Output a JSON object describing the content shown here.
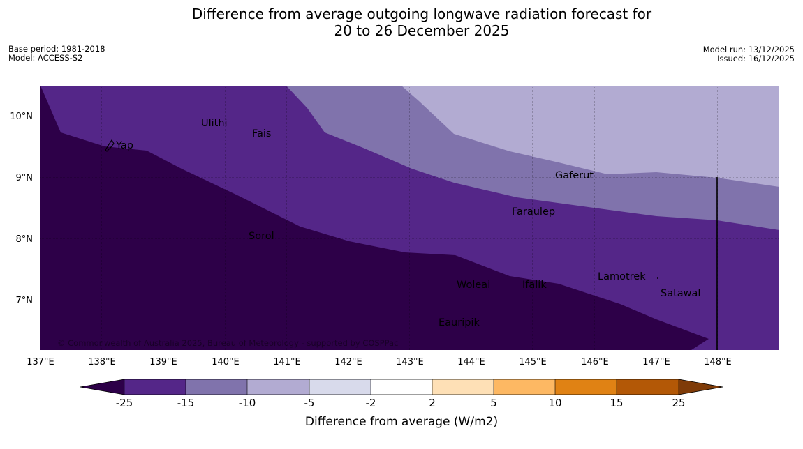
{
  "title": {
    "line1": "Difference from average outgoing longwave radiation forecast for",
    "line2": "20 to 26 December 2025"
  },
  "meta": {
    "base_period": "Base period: 1981-2018",
    "model": "Model: ACCESS-S2",
    "model_run": "Model run: 13/12/2025",
    "issued": "Issued: 16/12/2025"
  },
  "map": {
    "lon_labels": [
      "137°E",
      "138°E",
      "139°E",
      "140°E",
      "141°E",
      "142°E",
      "143°E",
      "144°E",
      "145°E",
      "146°E",
      "147°E",
      "148°E"
    ],
    "lat_labels": [
      "10°N",
      "9°N",
      "8°N",
      "7°N"
    ],
    "places": [
      "Yap",
      "Ulithi",
      "Fais",
      "Gaferut",
      "Faraulep",
      "Sorol",
      "Lamotrek",
      "Woleai",
      "Ifalik",
      "Satawal",
      "Eauripik"
    ],
    "copyright": "© Commonwealth of Australia 2025, Bureau of Meteorology - supported by COSPPac"
  },
  "colorbar": {
    "title": "Difference from average (W/m2)",
    "tick_labels": [
      "-25",
      "-15",
      "-10",
      "-5",
      "-2",
      "2",
      "5",
      "10",
      "15",
      "25"
    ],
    "colors": {
      "below_-25": "#2d0048",
      "-25_-15": "#542688",
      "-15_-10": "#8073ac",
      "-10_-5": "#b2abd2",
      "-5_-2": "#d8daeb",
      "-2_2": "#ffffff",
      "2_5": "#fee0b6",
      "5_10": "#fdb863",
      "10_15": "#e08214",
      "15_25": "#b35806",
      "above_25": "#7f3b08"
    }
  }
}
